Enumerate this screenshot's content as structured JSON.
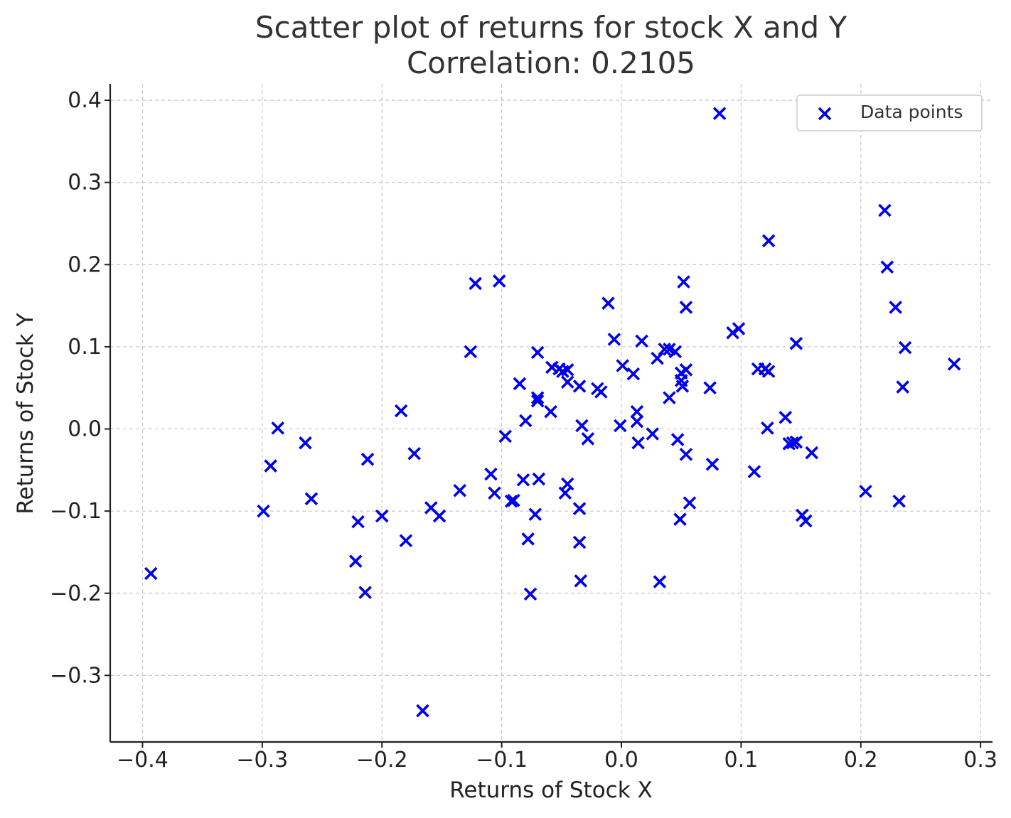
{
  "chart_data": {
    "type": "scatter",
    "title": "Scatter plot of returns for stock X and Y",
    "subtitle": "Correlation: 0.2105",
    "xlabel": "Returns of Stock X",
    "ylabel": "Returns of Stock Y",
    "xlim": [
      -0.427,
      0.31
    ],
    "ylim": [
      -0.381,
      0.42
    ],
    "x_ticks": [
      -0.4,
      -0.3,
      -0.2,
      -0.1,
      0.0,
      0.1,
      0.2,
      0.3
    ],
    "y_ticks": [
      -0.3,
      -0.2,
      -0.1,
      0.0,
      0.1,
      0.2,
      0.3,
      0.4
    ],
    "x_tick_labels": [
      "−0.4",
      "−0.3",
      "−0.2",
      "−0.1",
      "0.0",
      "0.1",
      "0.2",
      "0.3"
    ],
    "y_tick_labels": [
      "−0.3",
      "−0.2",
      "−0.1",
      "0.0",
      "0.1",
      "0.2",
      "0.3",
      "0.4"
    ],
    "grid": true,
    "legend_position": "top-right",
    "marker": "x",
    "color": "#0000ee",
    "series": [
      {
        "name": "Data points",
        "points": [
          [
            -0.393,
            -0.176
          ],
          [
            -0.299,
            -0.1
          ],
          [
            -0.293,
            -0.045
          ],
          [
            -0.287,
            0.001
          ],
          [
            -0.264,
            -0.017
          ],
          [
            -0.259,
            -0.085
          ],
          [
            -0.222,
            -0.161
          ],
          [
            -0.22,
            -0.113
          ],
          [
            -0.214,
            -0.199
          ],
          [
            -0.212,
            -0.037
          ],
          [
            -0.2,
            -0.106
          ],
          [
            -0.184,
            0.022
          ],
          [
            -0.18,
            -0.136
          ],
          [
            -0.173,
            -0.03
          ],
          [
            -0.166,
            -0.343
          ],
          [
            -0.159,
            -0.096
          ],
          [
            -0.152,
            -0.106
          ],
          [
            -0.135,
            -0.075
          ],
          [
            -0.126,
            0.094
          ],
          [
            -0.122,
            0.177
          ],
          [
            -0.109,
            -0.055
          ],
          [
            -0.106,
            -0.078
          ],
          [
            -0.102,
            0.18
          ],
          [
            -0.097,
            -0.009
          ],
          [
            -0.092,
            -0.088
          ],
          [
            -0.09,
            -0.087
          ],
          [
            -0.085,
            0.055
          ],
          [
            -0.082,
            -0.062
          ],
          [
            -0.08,
            0.01
          ],
          [
            -0.078,
            -0.134
          ],
          [
            -0.076,
            -0.201
          ],
          [
            -0.072,
            -0.104
          ],
          [
            -0.07,
            0.093
          ],
          [
            -0.07,
            0.038
          ],
          [
            -0.07,
            0.034
          ],
          [
            -0.069,
            -0.061
          ],
          [
            -0.059,
            0.021
          ],
          [
            -0.058,
            0.075
          ],
          [
            -0.052,
            0.073
          ],
          [
            -0.049,
            0.07
          ],
          [
            -0.047,
            -0.078
          ],
          [
            -0.045,
            0.072
          ],
          [
            -0.045,
            -0.067
          ],
          [
            -0.045,
            0.057
          ],
          [
            -0.035,
            0.052
          ],
          [
            -0.035,
            -0.138
          ],
          [
            -0.035,
            -0.097
          ],
          [
            -0.034,
            -0.185
          ],
          [
            -0.033,
            0.004
          ],
          [
            -0.028,
            -0.012
          ],
          [
            -0.02,
            0.049
          ],
          [
            -0.017,
            0.045
          ],
          [
            -0.011,
            0.153
          ],
          [
            -0.006,
            0.109
          ],
          [
            -0.001,
            0.004
          ],
          [
            0.001,
            0.077
          ],
          [
            0.01,
            0.067
          ],
          [
            0.013,
            0.021
          ],
          [
            0.013,
            0.009
          ],
          [
            0.014,
            -0.017
          ],
          [
            0.017,
            0.107
          ],
          [
            0.026,
            -0.006
          ],
          [
            0.03,
            0.086
          ],
          [
            0.032,
            -0.186
          ],
          [
            0.036,
            0.097
          ],
          [
            0.04,
            0.038
          ],
          [
            0.04,
            0.097
          ],
          [
            0.045,
            0.094
          ],
          [
            0.047,
            -0.013
          ],
          [
            0.049,
            -0.11
          ],
          [
            0.05,
            0.068
          ],
          [
            0.05,
            0.059
          ],
          [
            0.051,
            0.052
          ],
          [
            0.052,
            0.179
          ],
          [
            0.054,
            0.072
          ],
          [
            0.054,
            -0.031
          ],
          [
            0.054,
            0.148
          ],
          [
            0.057,
            -0.09
          ],
          [
            0.074,
            0.05
          ],
          [
            0.076,
            -0.043
          ],
          [
            0.082,
            0.384
          ],
          [
            0.093,
            0.117
          ],
          [
            0.098,
            0.122
          ],
          [
            0.111,
            -0.052
          ],
          [
            0.114,
            0.073
          ],
          [
            0.12,
            0.073
          ],
          [
            0.122,
            0.001
          ],
          [
            0.123,
            0.07
          ],
          [
            0.123,
            0.229
          ],
          [
            0.137,
            0.014
          ],
          [
            0.14,
            -0.018
          ],
          [
            0.143,
            -0.017
          ],
          [
            0.146,
            0.104
          ],
          [
            0.146,
            -0.016
          ],
          [
            0.151,
            -0.105
          ],
          [
            0.154,
            -0.112
          ],
          [
            0.159,
            -0.029
          ],
          [
            0.204,
            -0.076
          ],
          [
            0.22,
            0.266
          ],
          [
            0.222,
            0.197
          ],
          [
            0.229,
            0.148
          ],
          [
            0.232,
            -0.088
          ],
          [
            0.235,
            0.051
          ],
          [
            0.237,
            0.099
          ],
          [
            0.278,
            0.079
          ]
        ]
      }
    ]
  }
}
